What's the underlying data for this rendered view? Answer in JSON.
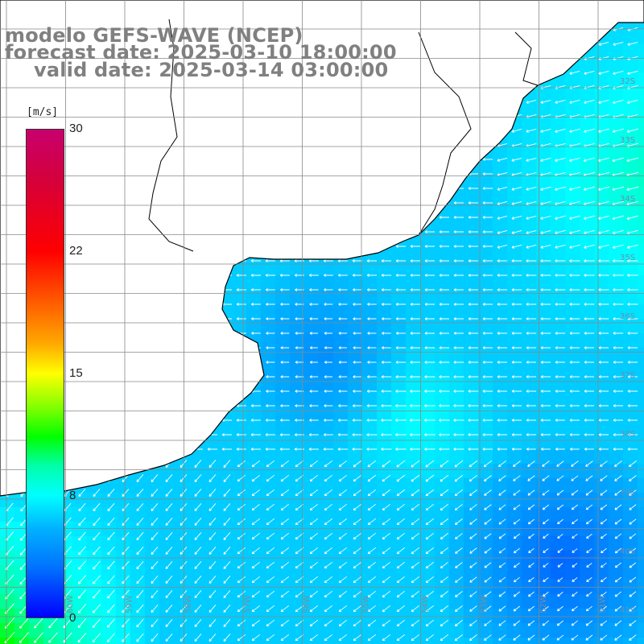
{
  "header": {
    "line1": "modelo GEFS-WAVE (NCEP)",
    "line2": "forecast date: 2025-03-10 18:00:00",
    "line3": "valid date: 2025-03-14 03:00:00"
  },
  "legend": {
    "units": "[m/s]",
    "ticks": [
      "30",
      "22",
      "15",
      "8",
      "0"
    ],
    "scale_max": 30,
    "color_stops": [
      "#c8006e",
      "#ff0000",
      "#ffaa00",
      "#ffff00",
      "#00ff00",
      "#00ffff",
      "#0070ff",
      "#0000ff"
    ]
  },
  "map": {
    "lat_labels": [
      "32S",
      "33S",
      "34S",
      "35S",
      "36S",
      "37S",
      "38S",
      "39S",
      "40S",
      "41S"
    ],
    "lon_labels": [
      "60W",
      "59W",
      "58W",
      "57W",
      "56W",
      "55W",
      "54W",
      "53W",
      "52W",
      "51W"
    ],
    "land_color": "#ffffff",
    "coast_color": "#000000",
    "grid_color": "#888888",
    "arrow_color": "#ffffff"
  }
}
